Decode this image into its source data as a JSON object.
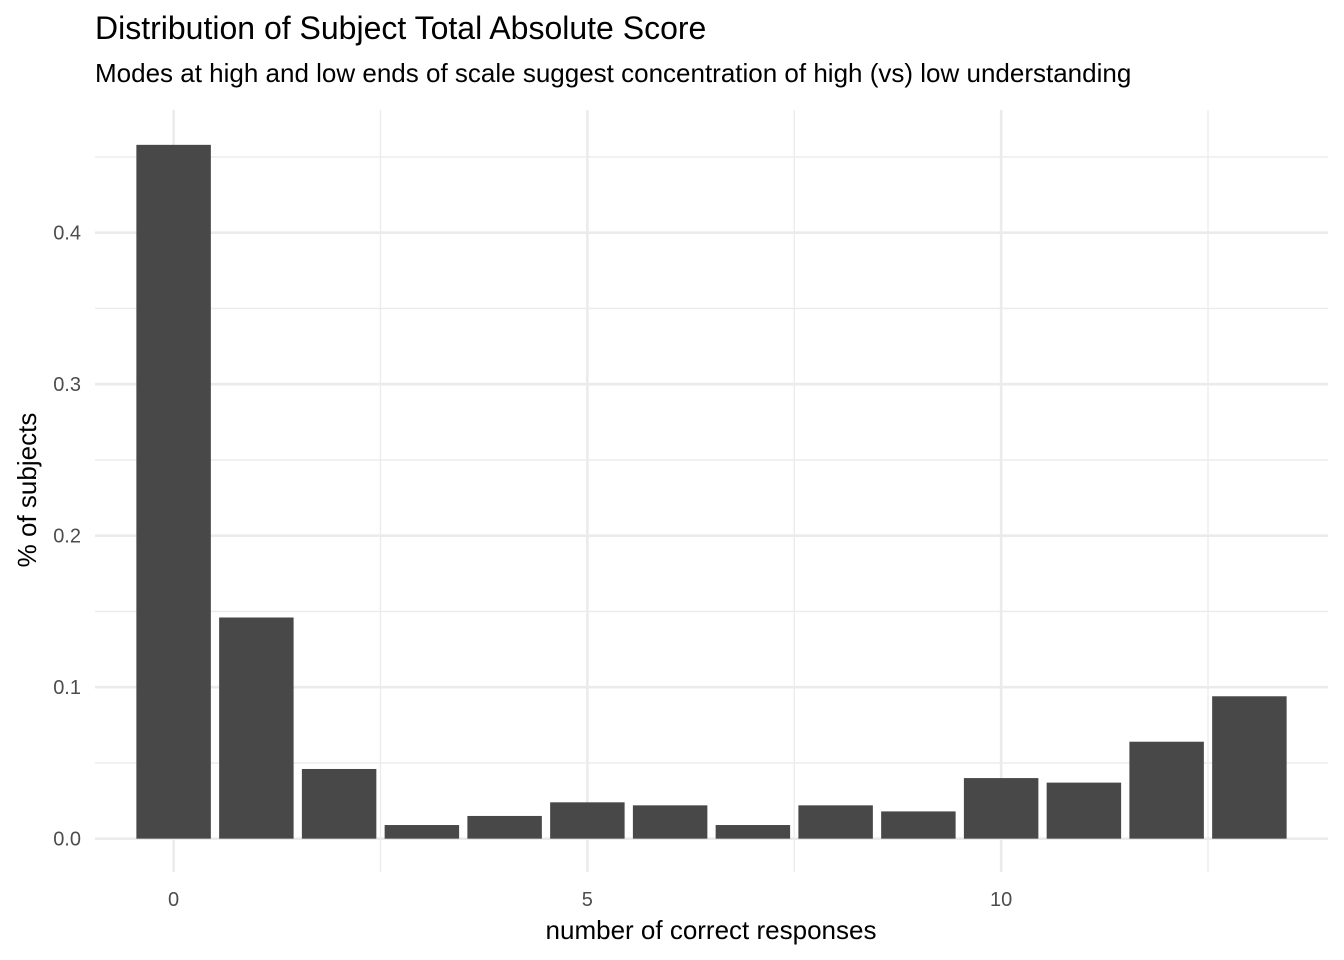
{
  "chart_data": {
    "type": "bar",
    "title": "Distribution of Subject Total Absolute Score",
    "subtitle": "Modes at high and low ends of scale suggest concentration of high (vs) low understanding",
    "xlabel": "number of correct responses",
    "ylabel": "% of subjects",
    "x": [
      0,
      1,
      2,
      3,
      4,
      5,
      6,
      7,
      8,
      9,
      10,
      11,
      12,
      13
    ],
    "values": [
      0.458,
      0.146,
      0.046,
      0.009,
      0.015,
      0.024,
      0.022,
      0.009,
      0.022,
      0.018,
      0.04,
      0.037,
      0.064,
      0.094
    ],
    "xlim": [
      -0.95,
      13.95
    ],
    "ylim": [
      -0.022,
      0.481
    ],
    "x_ticks": [
      0,
      5,
      10
    ],
    "x_tick_labels": [
      "0",
      "5",
      "10"
    ],
    "y_ticks": [
      0.0,
      0.1,
      0.2,
      0.3,
      0.4
    ],
    "y_tick_labels": [
      "0.0",
      "0.1",
      "0.2",
      "0.3",
      "0.4"
    ],
    "bar_color": "#484848",
    "grid": true,
    "legend": "none"
  }
}
